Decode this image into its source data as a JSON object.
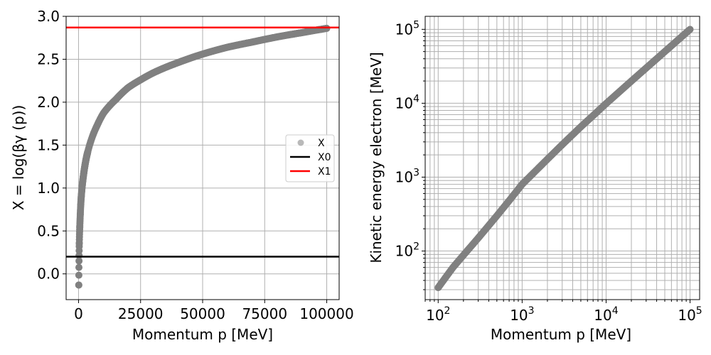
{
  "chart_data": [
    {
      "type": "scatter",
      "xlabel": "Momentum p [MeV]",
      "ylabel": "X = log(βγ (p))",
      "xlim": [
        -5000,
        105000
      ],
      "ylim": [
        -0.3,
        3.0
      ],
      "xticks": [
        0,
        25000,
        50000,
        75000,
        100000
      ],
      "xtick_labels": [
        "0",
        "25000",
        "50000",
        "75000",
        "100000"
      ],
      "yticks": [
        0.0,
        0.5,
        1.0,
        1.5,
        2.0,
        2.5,
        3.0
      ],
      "ytick_labels": [
        "0.0",
        "0.5",
        "1.0",
        "1.5",
        "2.0",
        "2.5",
        "3.0"
      ],
      "grid": true,
      "legend_position": "center-right",
      "series": [
        {
          "name": "X",
          "kind": "points",
          "color": "#808080",
          "x": [
            100,
            300,
            600,
            1000,
            2000,
            3000,
            5000,
            7500,
            10000,
            15000,
            20000,
            25000,
            30000,
            40000,
            50000,
            60000,
            70000,
            80000,
            90000,
            100000
          ],
          "y": [
            -0.13,
            0.35,
            0.62,
            0.86,
            1.15,
            1.33,
            1.55,
            1.73,
            1.87,
            2.03,
            2.17,
            2.26,
            2.34,
            2.46,
            2.56,
            2.64,
            2.7,
            2.76,
            2.81,
            2.86
          ]
        },
        {
          "name": "X0",
          "kind": "hline",
          "color": "#000000",
          "y": 0.2
        },
        {
          "name": "X1",
          "kind": "hline",
          "color": "#ff0000",
          "y": 2.87
        }
      ]
    },
    {
      "type": "scatter",
      "xlabel": "Momentum p [MeV]",
      "ylabel": "Kinetic energy electron [MeV]",
      "xscale": "log",
      "yscale": "log",
      "xlim": [
        70,
        130000
      ],
      "ylim": [
        22,
        150000
      ],
      "xticks": [
        100,
        1000,
        10000,
        100000
      ],
      "xtick_labels": [
        "10^2",
        "10^3",
        "10^4",
        "10^5"
      ],
      "yticks": [
        100,
        1000,
        10000,
        100000
      ],
      "ytick_labels": [
        "10^2",
        "10^3",
        "10^4",
        "10^5"
      ],
      "grid": true,
      "series": [
        {
          "kind": "points",
          "color": "#808080",
          "x": [
            100,
            150,
            200,
            300,
            500,
            700,
            1000,
            2000,
            3000,
            5000,
            7000,
            10000,
            20000,
            30000,
            50000,
            70000,
            100000
          ],
          "y": [
            32,
            60,
            88,
            150,
            300,
            480,
            800,
            1750,
            2750,
            4800,
            6800,
            9900,
            19950,
            29950,
            49950,
            69950,
            99950
          ]
        }
      ]
    }
  ]
}
